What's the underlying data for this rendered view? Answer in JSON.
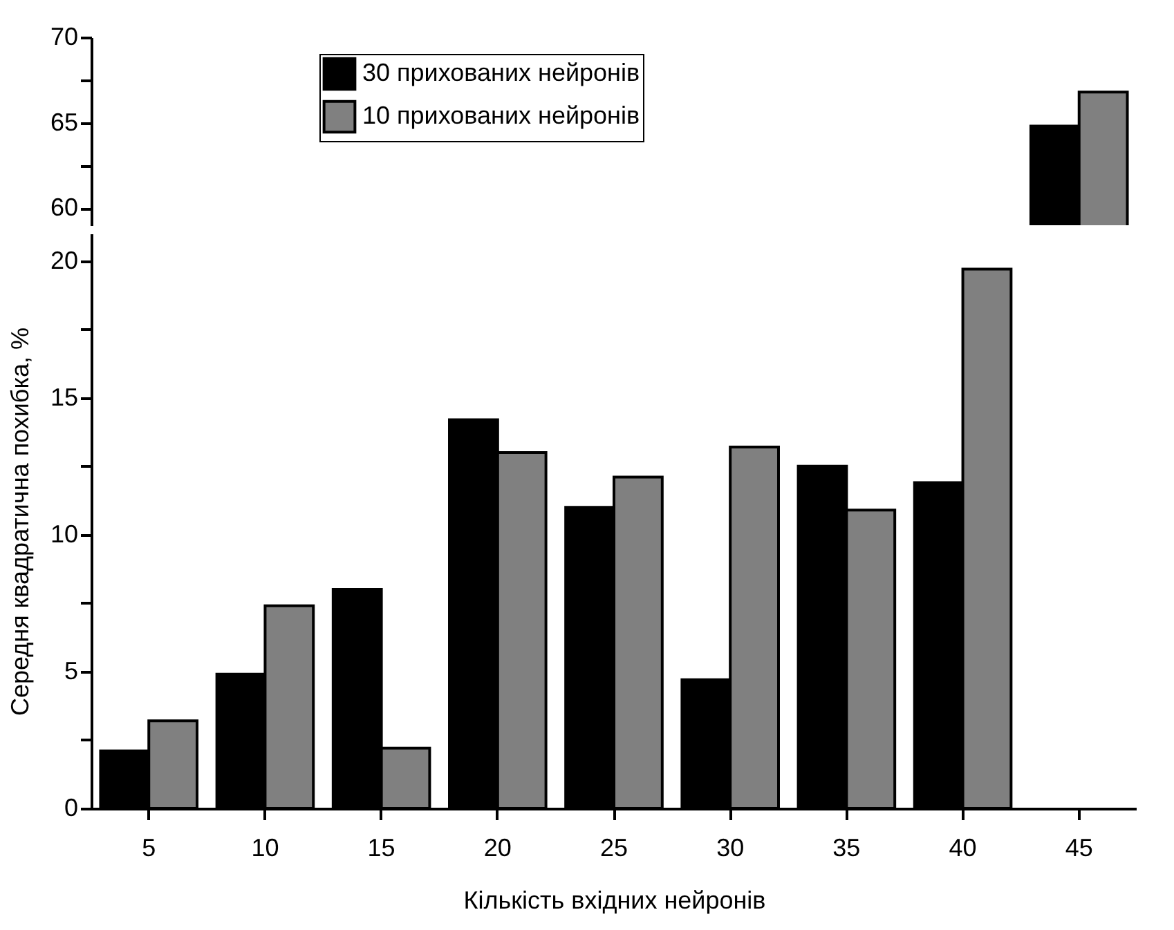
{
  "chart_data": [
    {
      "type": "bar",
      "categories": [
        "5",
        "10",
        "15",
        "20",
        "25",
        "30",
        "35",
        "40",
        "45"
      ],
      "series": [
        {
          "name": "30 прихованих нейронів",
          "color": "#000000",
          "values": [
            null,
            null,
            null,
            null,
            null,
            null,
            null,
            null,
            64.8
          ]
        },
        {
          "name": "10 прихованих нейронів",
          "color": "#808080",
          "values": [
            null,
            null,
            null,
            null,
            null,
            null,
            null,
            null,
            66.8
          ]
        }
      ],
      "ylim": [
        59,
        70
      ],
      "yticks": [
        60,
        {
          "value": 62.5,
          "label": null
        },
        65,
        {
          "value": 67.5,
          "label": null
        },
        70
      ],
      "tick_labels": "y",
      "legend": "top",
      "grid": false
    },
    {
      "type": "bar",
      "categories": [
        "5",
        "10",
        "15",
        "20",
        "25",
        "30",
        "35",
        "40",
        "45"
      ],
      "series": [
        {
          "name": "30 прихованих нейронів",
          "color": "#000000",
          "values": [
            2.1,
            4.9,
            8.0,
            14.2,
            11.0,
            4.7,
            12.5,
            11.9,
            null
          ]
        },
        {
          "name": "10 прихованих нейронів",
          "color": "#808080",
          "values": [
            3.2,
            7.4,
            2.2,
            13.0,
            12.1,
            13.2,
            10.9,
            19.7,
            null
          ]
        }
      ],
      "ylim": [
        0,
        21
      ],
      "yticks": [
        0,
        {
          "value": 2.5,
          "label": null
        },
        5,
        {
          "value": 7.5,
          "label": null
        },
        10,
        {
          "value": 12.5,
          "label": null
        },
        15,
        {
          "value": 17.5,
          "label": null
        },
        20
      ],
      "xlabel": "Кількість вхідних нейронів",
      "ylabel": "Середня квадратична похибка, %",
      "legend": false,
      "grid": false
    }
  ]
}
